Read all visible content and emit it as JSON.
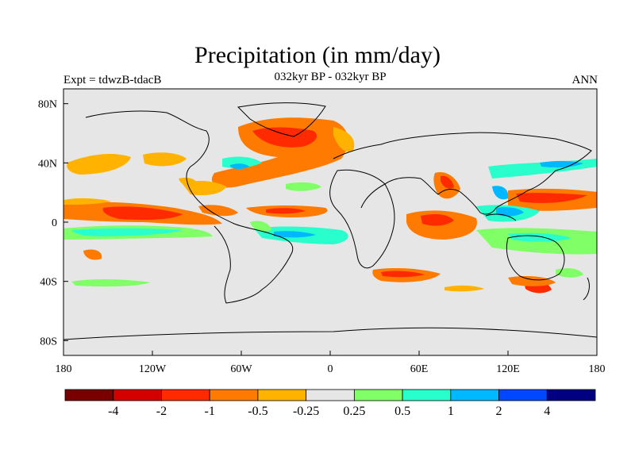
{
  "title": "Precipitation (in mm/day)",
  "experiment": "Expt = tdwzB-tdacB",
  "subtitle": "032kyr BP - 032kyr BP",
  "season": "ANN",
  "map": {
    "projection": "cylindrical equidistant",
    "lon_range": [
      -180,
      180
    ],
    "lat_range": [
      -90,
      90
    ],
    "x_ticks": [
      "180",
      "120W",
      "60W",
      "0",
      "60E",
      "120E",
      "180"
    ],
    "y_ticks": [
      "80N",
      "40N",
      "0",
      "40S",
      "80S"
    ]
  },
  "colors": {
    "missing": "#e6e6e6",
    "coast": "#000000",
    "scale": [
      "#7a0000",
      "#d40000",
      "#ff2a00",
      "#ff7a00",
      "#ffb300",
      "#e6e6e6",
      "#80ff66",
      "#29ffcc",
      "#00b8ff",
      "#0048ff",
      "#000080"
    ]
  },
  "colorbar": {
    "labels": [
      "-4",
      "-2",
      "-1",
      "-0.5",
      "-0.25",
      "0.25",
      "0.5",
      "1",
      "2",
      "4"
    ]
  }
}
